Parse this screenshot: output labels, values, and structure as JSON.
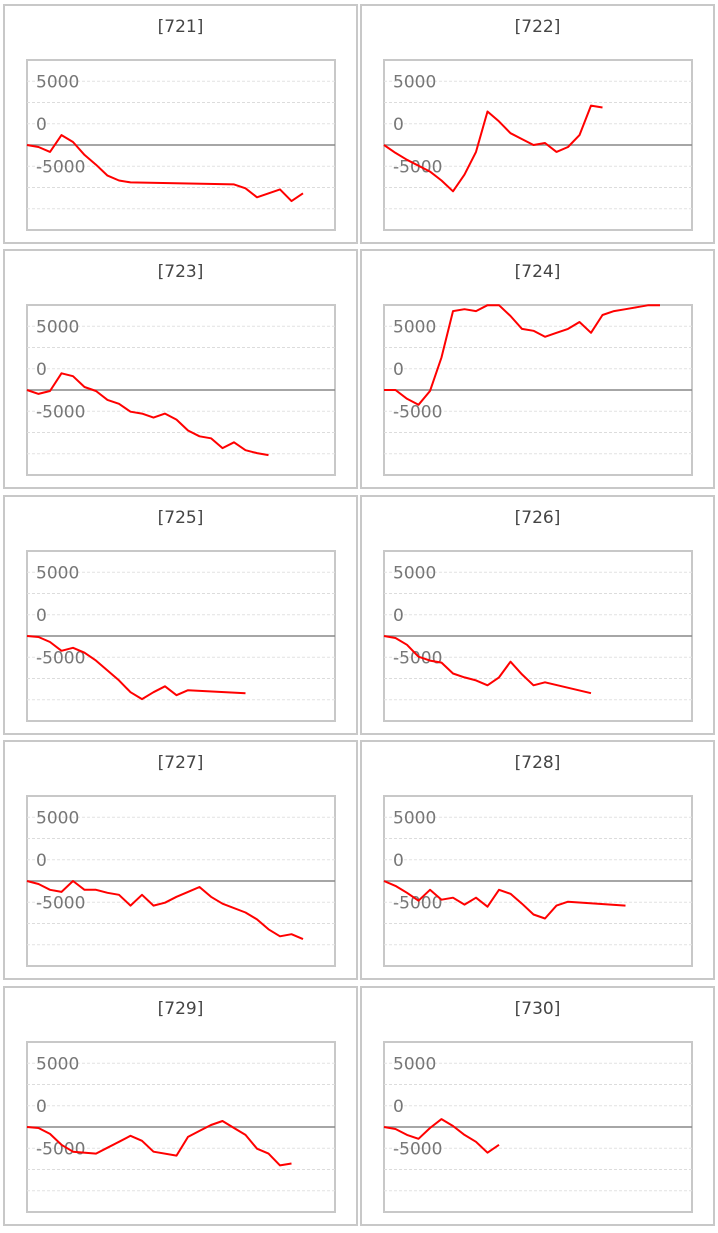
{
  "chart_data": [
    {
      "type": "line",
      "title": "[721]",
      "color": "#ff0000",
      "ylim": [
        -10000,
        10000
      ],
      "yticks": [
        5000,
        0,
        -5000
      ],
      "x": [
        0,
        1,
        2,
        3,
        4,
        5,
        6,
        7,
        8,
        9,
        18,
        19,
        20,
        22,
        23,
        24
      ],
      "values": [
        0,
        -230,
        -810,
        1160,
        350,
        -1160,
        -2320,
        -3600,
        -4180,
        -4400,
        -4640,
        -5100,
        -6150,
        -5220,
        -6600,
        -5680
      ]
    },
    {
      "type": "line",
      "title": "[722]",
      "color": "#ff0000",
      "ylim": [
        -10000,
        10000
      ],
      "yticks": [
        5000,
        0,
        -5000
      ],
      "x": [
        0,
        1,
        2,
        4,
        5,
        6,
        7,
        8,
        9,
        10,
        11,
        12,
        13,
        14,
        15,
        16,
        17,
        18,
        19
      ],
      "values": [
        0,
        -930,
        -1740,
        -3130,
        -4180,
        -5450,
        -3480,
        -810,
        3940,
        2780,
        1390,
        700,
        0,
        230,
        -810,
        -230,
        1160,
        4640,
        4410
      ]
    },
    {
      "type": "line",
      "title": "[723]",
      "color": "#ff0000",
      "ylim": [
        -10000,
        10000
      ],
      "yticks": [
        5000,
        0,
        -5000
      ],
      "x": [
        0,
        1,
        2,
        3,
        4,
        5,
        6,
        7,
        8,
        9,
        10,
        11,
        12,
        13,
        14,
        15,
        16,
        17,
        18,
        19,
        20,
        21
      ],
      "values": [
        0,
        -460,
        -120,
        1970,
        1620,
        350,
        -120,
        -1160,
        -1620,
        -2550,
        -2780,
        -3250,
        -2780,
        -3480,
        -4760,
        -5450,
        -5680,
        -6840,
        -6150,
        -7080,
        -7420,
        -7660
      ]
    },
    {
      "type": "line",
      "title": "[724]",
      "color": "#ff0000",
      "ylim": [
        -10000,
        10000
      ],
      "yticks": [
        5000,
        0,
        -5000
      ],
      "x": [
        0,
        1,
        2,
        3,
        4,
        5,
        6,
        7,
        8,
        9,
        10,
        11,
        12,
        13,
        14,
        15,
        16,
        17,
        18,
        19,
        20,
        21,
        22,
        23,
        24
      ],
      "values": [
        0,
        0,
        -1040,
        -1740,
        -120,
        3830,
        9280,
        9510,
        9280,
        9980,
        9980,
        8700,
        7190,
        6960,
        6260,
        6730,
        7190,
        8000,
        6730,
        8820,
        9280,
        9510,
        9740,
        9980,
        9980
      ]
    },
    {
      "type": "line",
      "title": "[725]",
      "color": "#ff0000",
      "ylim": [
        -10000,
        10000
      ],
      "yticks": [
        5000,
        0,
        -5000
      ],
      "x": [
        0,
        1,
        2,
        3,
        4,
        5,
        6,
        7,
        8,
        9,
        10,
        11,
        12,
        13,
        14,
        19
      ],
      "values": [
        0,
        -120,
        -700,
        -1740,
        -1390,
        -1970,
        -2900,
        -4060,
        -5220,
        -6610,
        -7420,
        -6610,
        -5920,
        -6960,
        -6380,
        -6730
      ]
    },
    {
      "type": "line",
      "title": "[726]",
      "color": "#ff0000",
      "ylim": [
        -10000,
        10000
      ],
      "yticks": [
        5000,
        0,
        -5000
      ],
      "x": [
        0,
        1,
        2,
        3,
        4,
        5,
        6,
        7,
        8,
        9,
        10,
        11,
        12,
        13,
        14,
        18
      ],
      "values": [
        0,
        -230,
        -1040,
        -2440,
        -2900,
        -3130,
        -4410,
        -4870,
        -5220,
        -5800,
        -4870,
        -3020,
        -4520,
        -5800,
        -5450,
        -6730
      ]
    },
    {
      "type": "line",
      "title": "[727]",
      "color": "#ff0000",
      "ylim": [
        -10000,
        10000
      ],
      "yticks": [
        5000,
        0,
        -5000
      ],
      "x": [
        0,
        1,
        2,
        3,
        4,
        5,
        6,
        7,
        8,
        9,
        10,
        11,
        12,
        13,
        14,
        15,
        16,
        17,
        19,
        20,
        21,
        22,
        23,
        24
      ],
      "values": [
        0,
        -350,
        -1040,
        -1280,
        0,
        -1040,
        -1040,
        -1390,
        -1620,
        -2900,
        -1620,
        -2900,
        -2550,
        -1860,
        -1280,
        -700,
        -1860,
        -2670,
        -3710,
        -4520,
        -5680,
        -6500,
        -6260,
        -6840
      ]
    },
    {
      "type": "line",
      "title": "[728]",
      "color": "#ff0000",
      "ylim": [
        -10000,
        10000
      ],
      "yticks": [
        5000,
        0,
        -5000
      ],
      "x": [
        0,
        1,
        2,
        3,
        4,
        5,
        6,
        7,
        8,
        9,
        10,
        11,
        12,
        13,
        14,
        15,
        16,
        21
      ],
      "values": [
        0,
        -580,
        -1390,
        -2320,
        -1040,
        -2200,
        -1970,
        -2780,
        -1970,
        -3020,
        -1040,
        -1510,
        -2670,
        -3940,
        -4410,
        -2900,
        -2440,
        -2900
      ]
    },
    {
      "type": "line",
      "title": "[729]",
      "color": "#ff0000",
      "ylim": [
        -10000,
        10000
      ],
      "yticks": [
        5000,
        0,
        -5000
      ],
      "x": [
        0,
        1,
        2,
        3,
        4,
        6,
        7,
        8,
        9,
        10,
        11,
        13,
        14,
        15,
        16,
        17,
        18,
        19,
        20,
        21,
        22,
        23
      ],
      "values": [
        0,
        -120,
        -810,
        -2090,
        -2900,
        -3130,
        -2440,
        -1740,
        -1040,
        -1620,
        -2900,
        -3360,
        -1160,
        -460,
        230,
        700,
        -120,
        -930,
        -2550,
        -3130,
        -4520,
        -4290
      ]
    },
    {
      "type": "line",
      "title": "[730]",
      "color": "#ff0000",
      "ylim": [
        -10000,
        10000
      ],
      "yticks": [
        5000,
        0,
        -5000
      ],
      "x": [
        0,
        1,
        2,
        3,
        4,
        5,
        6,
        7,
        8,
        9,
        10
      ],
      "values": [
        0,
        -230,
        -930,
        -1390,
        -120,
        930,
        120,
        -930,
        -1740,
        -3020,
        -2090
      ]
    }
  ]
}
